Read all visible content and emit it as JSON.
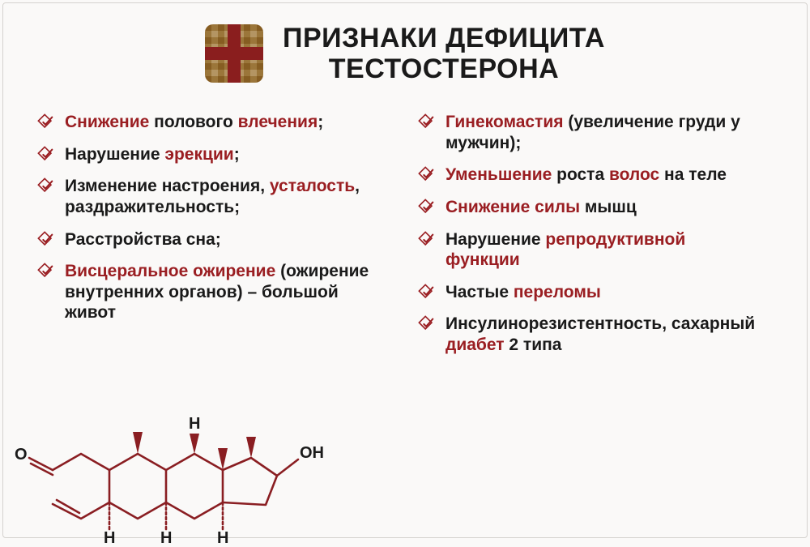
{
  "colors": {
    "background": "#faf9f8",
    "text": "#1a1a1a",
    "accent": "#9a1e22",
    "checkStroke": "#9a1e22",
    "moleculeStroke": "#8a1e22",
    "moleculeText": "#1a1a1a",
    "borderColor": "#d5d2cf"
  },
  "typography": {
    "titleFontSize": 34,
    "itemFontSize": 21
  },
  "header": {
    "line1": "ПРИЗНАКИ ДЕФИЦИТА",
    "line2": "ТЕСТОСТЕРОНА"
  },
  "leftItems": [
    {
      "segments": [
        {
          "t": "Снижение",
          "hl": true
        },
        {
          "t": " полового ",
          "hl": false
        },
        {
          "t": "влечения",
          "hl": true
        },
        {
          "t": ";",
          "hl": false
        }
      ]
    },
    {
      "segments": [
        {
          "t": "Нарушение ",
          "hl": false
        },
        {
          "t": "эрекции",
          "hl": true
        },
        {
          "t": ";",
          "hl": false
        }
      ]
    },
    {
      "segments": [
        {
          "t": "Изменение настроения, ",
          "hl": false
        },
        {
          "t": "усталость",
          "hl": true
        },
        {
          "t": ", раздражительность;",
          "hl": false
        }
      ]
    },
    {
      "segments": [
        {
          "t": "Расстройства сна;",
          "hl": false
        }
      ]
    },
    {
      "segments": [
        {
          "t": "Висцеральное ожирение",
          "hl": true
        },
        {
          "t": " (ожирение внутренних органов) – большой живот",
          "hl": false
        }
      ]
    }
  ],
  "rightItems": [
    {
      "segments": [
        {
          "t": "Гинекомастия",
          "hl": true
        },
        {
          "t": " (увеличение груди у мужчин);",
          "hl": false
        }
      ]
    },
    {
      "segments": [
        {
          "t": "Уменьшение",
          "hl": true
        },
        {
          "t": " роста ",
          "hl": false
        },
        {
          "t": "волос",
          "hl": true
        },
        {
          "t": " на теле",
          "hl": false
        }
      ]
    },
    {
      "segments": [
        {
          "t": "Снижение силы",
          "hl": true
        },
        {
          "t": " мышц",
          "hl": false
        }
      ]
    },
    {
      "segments": [
        {
          "t": "Нарушение ",
          "hl": false
        },
        {
          "t": "репродуктивной функции",
          "hl": true
        }
      ]
    },
    {
      "segments": [
        {
          "t": "Частые ",
          "hl": false
        },
        {
          "t": "переломы",
          "hl": true
        }
      ]
    },
    {
      "segments": [
        {
          "t": "Инсулинорезистентность, сахарный ",
          "hl": false
        },
        {
          "t": "диабет",
          "hl": true
        },
        {
          "t": " 2 типа",
          "hl": false
        }
      ]
    }
  ],
  "molecule": {
    "stroke_width": 2.6,
    "labels": {
      "O": "O",
      "OH": "OH",
      "H": "H"
    }
  }
}
